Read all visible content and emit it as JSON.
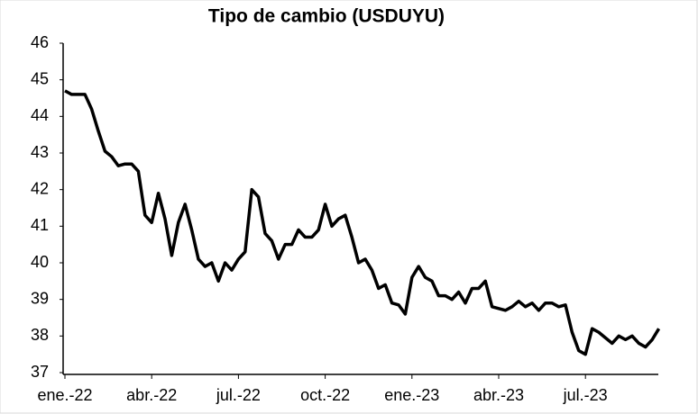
{
  "chart_data": {
    "type": "line",
    "title": "Tipo de cambio (USDUYU)",
    "categories": [
      "ene.-22",
      null,
      null,
      null,
      null,
      null,
      null,
      null,
      null,
      null,
      null,
      null,
      null,
      "abr.-22",
      null,
      null,
      null,
      null,
      null,
      null,
      null,
      null,
      null,
      null,
      null,
      null,
      "jul.-22",
      null,
      null,
      null,
      null,
      null,
      null,
      null,
      null,
      null,
      null,
      null,
      null,
      "oct.-22",
      null,
      null,
      null,
      null,
      null,
      null,
      null,
      null,
      null,
      null,
      null,
      null,
      "ene.-23",
      null,
      null,
      null,
      null,
      null,
      null,
      null,
      null,
      null,
      null,
      null,
      null,
      "abr.-23",
      null,
      null,
      null,
      null,
      null,
      null,
      null,
      null,
      null,
      null,
      null,
      null,
      "jul.-23",
      null,
      null,
      null,
      null,
      null,
      null,
      null,
      null,
      null,
      null,
      null
    ],
    "values": [
      44.7,
      44.6,
      44.6,
      44.6,
      44.2,
      43.6,
      43.05,
      42.9,
      42.65,
      42.7,
      42.7,
      42.5,
      41.3,
      41.1,
      41.9,
      41.2,
      40.2,
      41.1,
      41.6,
      40.9,
      40.1,
      39.9,
      40.0,
      39.5,
      40.0,
      39.8,
      40.1,
      40.3,
      42.0,
      41.8,
      40.8,
      40.6,
      40.1,
      40.5,
      40.5,
      40.9,
      40.7,
      40.7,
      40.9,
      41.6,
      41.0,
      41.2,
      41.3,
      40.7,
      40.0,
      40.1,
      39.8,
      39.3,
      39.4,
      38.9,
      38.85,
      38.6,
      39.6,
      39.9,
      39.6,
      39.5,
      39.1,
      39.1,
      39.0,
      39.2,
      38.9,
      39.3,
      39.3,
      39.5,
      38.8,
      38.75,
      38.7,
      38.8,
      38.95,
      38.8,
      38.9,
      38.7,
      38.9,
      38.9,
      38.8,
      38.85,
      38.1,
      37.6,
      37.5,
      38.2,
      38.1,
      37.95,
      37.8,
      38.0,
      37.9,
      38.0,
      37.8,
      37.7,
      37.9,
      38.2
    ],
    "color": "#000000",
    "ylim": [
      37,
      46
    ],
    "yticks": [
      37,
      38,
      39,
      40,
      41,
      42,
      43,
      44,
      45,
      46
    ],
    "grid": false
  }
}
